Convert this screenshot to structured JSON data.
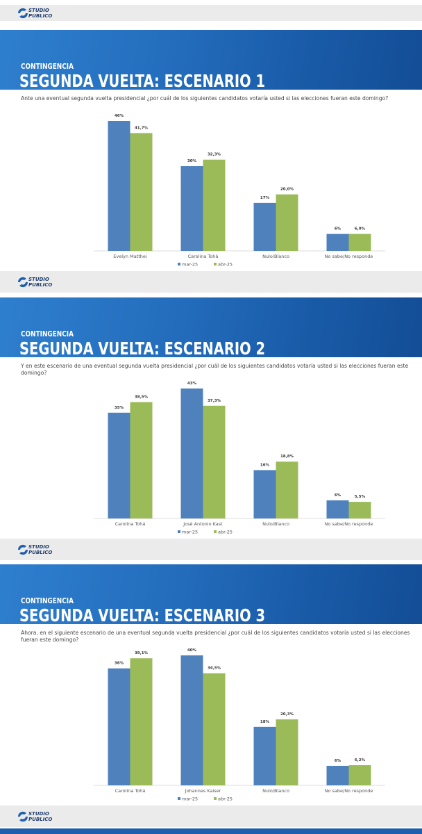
{
  "logo": {
    "line1": "STUDIO",
    "line2": "PUBLICO"
  },
  "chart_data": [
    {
      "type": "bar",
      "kicker": "CONTINGENCIA",
      "title": "SEGUNDA VUELTA: ESCENARIO 1",
      "subtitle": "Ante una eventual segunda vuelta presidencial  ¿por cuál de los siguientes candidatos votaría usted si las elecciones fueran este domingo?",
      "categories": [
        "Evelyn Matthei",
        "Carolina Tohá",
        "Nulo/Blanco",
        "No sabe/No responde"
      ],
      "series": [
        {
          "name": "mar-25",
          "color": "#4f81bd",
          "values": [
            46,
            30,
            17,
            6
          ],
          "value_labels": [
            "46%",
            "30%",
            "17%",
            "6%"
          ]
        },
        {
          "name": "abr-25",
          "color": "#9bbb59",
          "values": [
            41.7,
            32.3,
            20.0,
            6.0
          ],
          "value_labels": [
            "41,7%",
            "32,3%",
            "20,0%",
            "6,0%"
          ]
        }
      ]
    },
    {
      "type": "bar",
      "kicker": "CONTINGENCIA",
      "title": "SEGUNDA VUELTA: ESCENARIO 2",
      "subtitle": "Y en este escenario de una eventual segunda vuelta presidencial  ¿por cuál de los siguientes candidatos votaría usted si las elecciones fueran este domingo?",
      "categories": [
        "Carolina Tohá",
        "José Antonio Kast",
        "Nulo/Blanco",
        "No sabe/No responde"
      ],
      "series": [
        {
          "name": "mar-25",
          "color": "#4f81bd",
          "values": [
            35,
            43,
            16,
            6
          ],
          "value_labels": [
            "35%",
            "43%",
            "16%",
            "6%"
          ]
        },
        {
          "name": "abr-25",
          "color": "#9bbb59",
          "values": [
            38.5,
            37.3,
            18.8,
            5.5
          ],
          "value_labels": [
            "38,5%",
            "37,3%",
            "18,8%",
            "5,5%"
          ]
        }
      ]
    },
    {
      "type": "bar",
      "kicker": "CONTINGENCIA",
      "title": "SEGUNDA VUELTA: ESCENARIO 3",
      "subtitle": "Ahora, en el siguiente escenario de una eventual segunda vuelta presidencial  ¿por cuál de los siguientes candidatos votaría usted si las elecciones fueran este domingo?",
      "categories": [
        "Carolina Tohá",
        "Johannes Kaiser",
        "Nulo/Blanco",
        "No sabe/No responde"
      ],
      "series": [
        {
          "name": "mar-25",
          "color": "#4f81bd",
          "values": [
            36,
            40,
            18,
            6
          ],
          "value_labels": [
            "36%",
            "40%",
            "18%",
            "6%"
          ]
        },
        {
          "name": "abr-25",
          "color": "#9bbb59",
          "values": [
            39.1,
            34.5,
            20.3,
            6.2
          ],
          "value_labels": [
            "39,1%",
            "34,5%",
            "20,3%",
            "6,2%"
          ]
        }
      ]
    }
  ]
}
